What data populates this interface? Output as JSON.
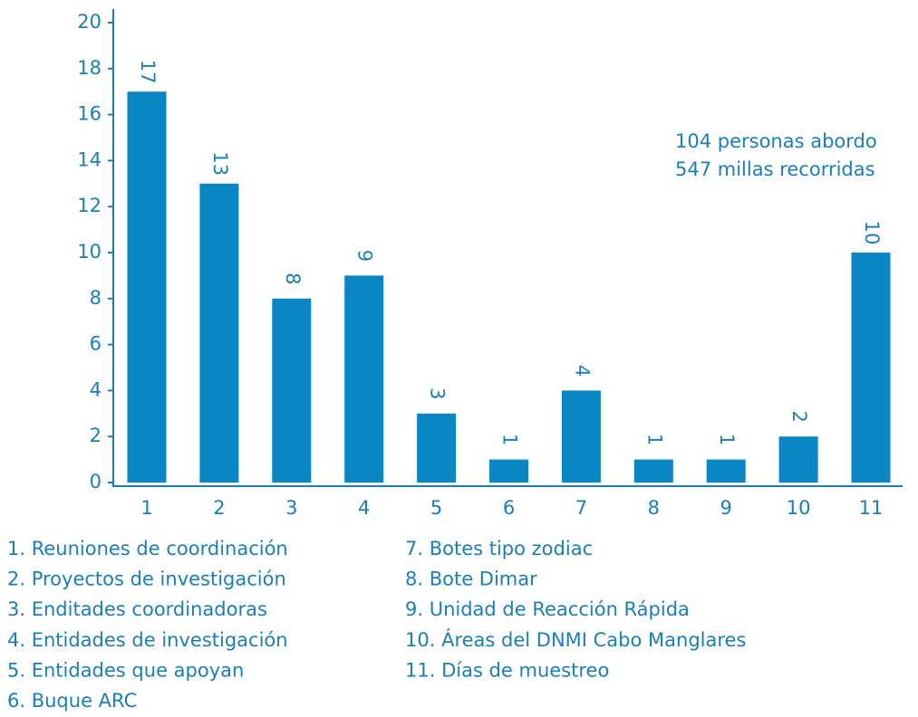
{
  "chart_data": {
    "type": "bar",
    "categories": [
      "1",
      "2",
      "3",
      "4",
      "5",
      "6",
      "7",
      "8",
      "9",
      "10",
      "11"
    ],
    "values": [
      17,
      13,
      8,
      9,
      3,
      1,
      4,
      1,
      1,
      2,
      10
    ],
    "color": "#0a86c4",
    "ylim": [
      0,
      20
    ],
    "yticks": [
      0,
      2,
      4,
      6,
      8,
      10,
      12,
      14,
      16,
      18,
      20
    ],
    "annotations": [
      "104 personas abordo",
      "547 millas recorridas"
    ],
    "legend": [
      "1. Reuniones de coordinación",
      "2. Proyectos de investigación",
      "3. Enditades coordinadoras",
      "4. Entidades de investigación",
      "5. Entidades que apoyan",
      "6. Buque ARC",
      "7. Botes tipo zodiac",
      "8. Bote Dimar",
      "9. Unidad de Reacción Rápida",
      "10. Áreas del DNMI Cabo Manglares",
      "11. Días de muestreo"
    ]
  }
}
